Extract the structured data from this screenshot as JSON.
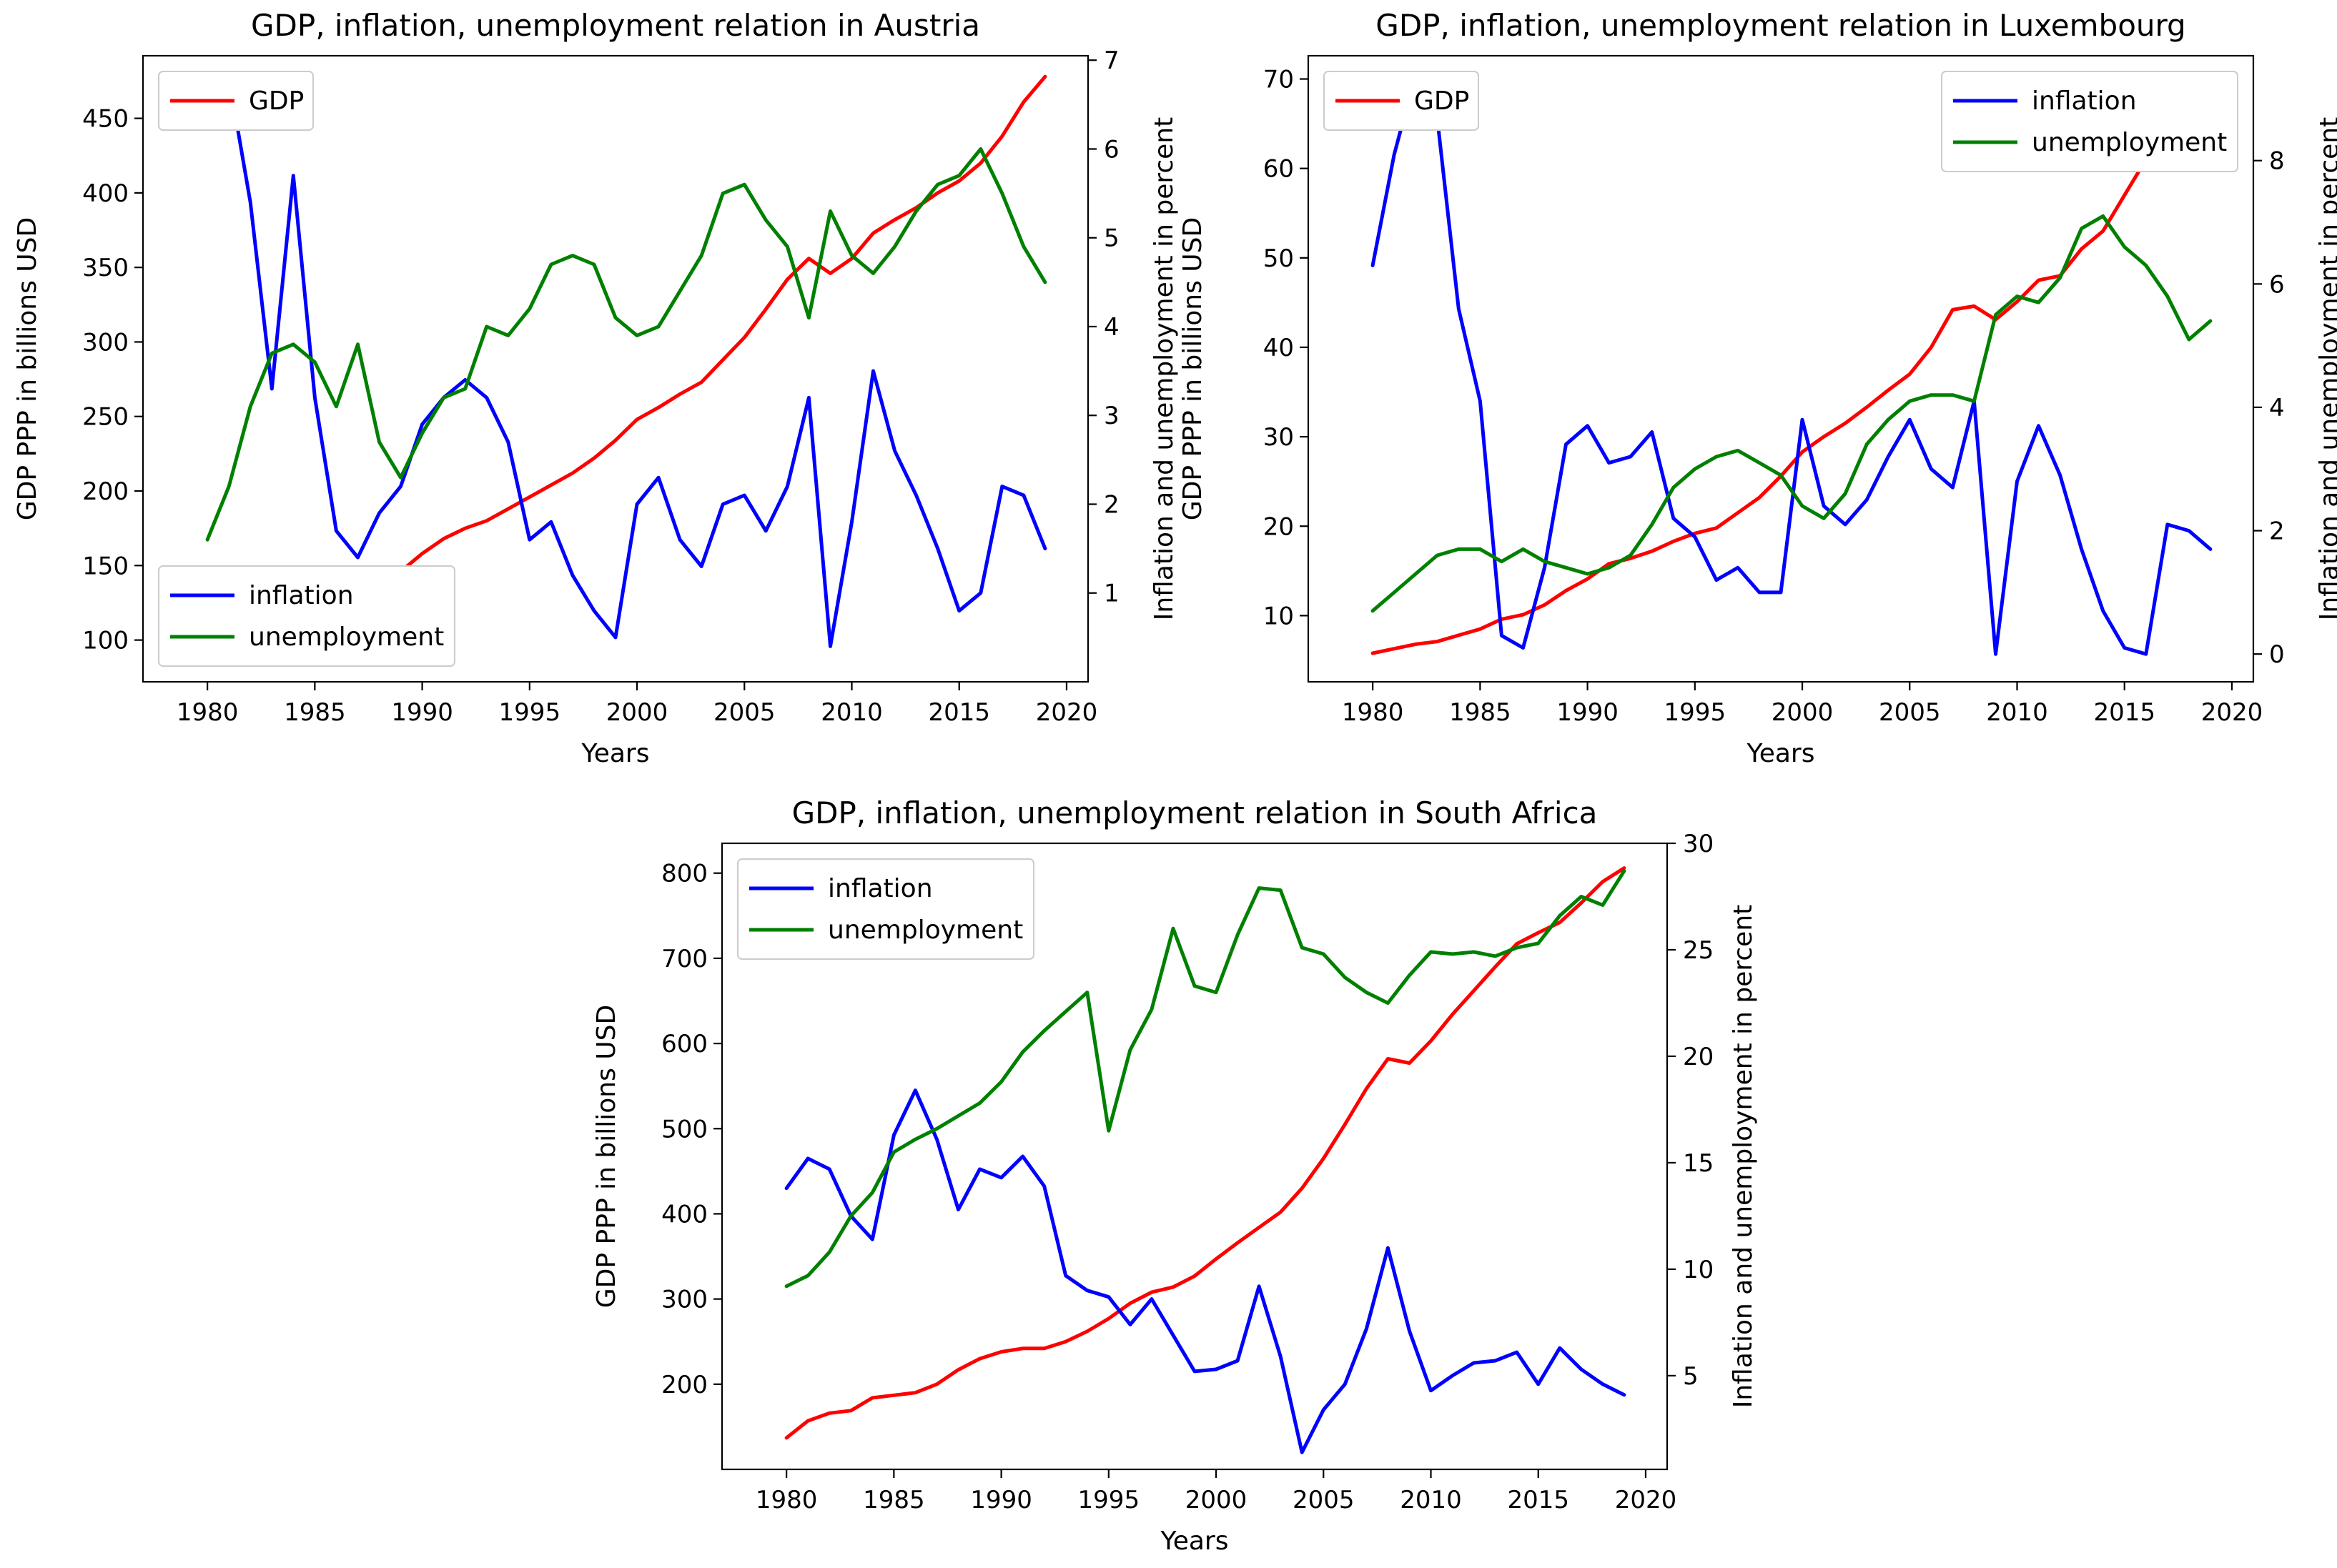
{
  "chart_data": [
    {
      "type": "line",
      "title": "GDP, inflation, unemployment relation in Austria",
      "xlabel": "Years",
      "ylabel": "GDP PPP in billions USD",
      "ylabel_right": "Inflation and unemployment in percent",
      "xlim": [
        1977,
        2021
      ],
      "ylim": [
        72,
        492
      ],
      "ylim_right": [
        0.0,
        7.05
      ],
      "xticks": [
        1980,
        1985,
        1990,
        1995,
        2000,
        2005,
        2010,
        2015,
        2020
      ],
      "yticks": [
        100,
        150,
        200,
        250,
        300,
        350,
        400,
        450
      ],
      "yticks_right": [
        1,
        2,
        3,
        4,
        5,
        6,
        7
      ],
      "x": [
        1980,
        1981,
        1982,
        1983,
        1984,
        1985,
        1986,
        1987,
        1988,
        1989,
        1990,
        1991,
        1992,
        1993,
        1994,
        1995,
        1996,
        1997,
        1998,
        1999,
        2000,
        2001,
        2002,
        2003,
        2004,
        2005,
        2006,
        2007,
        2008,
        2009,
        2010,
        2011,
        2012,
        2013,
        2014,
        2015,
        2016,
        2017,
        2018,
        2019
      ],
      "series": [
        {
          "name": "GDP",
          "axis": "left",
          "color": "#ff0000",
          "values": [
            85,
            92,
            100,
            107,
            112,
            116,
            122,
            127,
            133,
            146,
            158,
            168,
            175,
            180,
            188,
            196,
            204,
            212,
            222,
            234,
            248,
            256,
            265,
            273,
            288,
            303,
            322,
            342,
            356,
            346,
            356,
            373,
            382,
            390,
            400,
            408,
            420,
            438,
            461,
            478
          ]
        },
        {
          "name": "inflation",
          "axis": "right",
          "color": "#0000ff",
          "values": [
            6.4,
            6.8,
            5.4,
            3.3,
            5.7,
            3.2,
            1.7,
            1.4,
            1.9,
            2.2,
            2.9,
            3.2,
            3.4,
            3.2,
            2.7,
            1.6,
            1.8,
            1.2,
            0.8,
            0.5,
            2.0,
            2.3,
            1.6,
            1.3,
            2.0,
            2.1,
            1.7,
            2.2,
            3.2,
            0.4,
            1.8,
            3.5,
            2.6,
            2.1,
            1.5,
            0.8,
            1.0,
            2.2,
            2.1,
            1.5
          ]
        },
        {
          "name": "unemployment",
          "axis": "right",
          "color": "#008000",
          "values": [
            1.6,
            2.2,
            3.1,
            3.7,
            3.8,
            3.6,
            3.1,
            3.8,
            2.7,
            2.3,
            2.8,
            3.2,
            3.3,
            4.0,
            3.9,
            4.2,
            4.7,
            4.8,
            4.7,
            4.1,
            3.9,
            4.0,
            4.4,
            4.8,
            5.5,
            5.6,
            5.2,
            4.9,
            4.1,
            5.3,
            4.8,
            4.6,
            4.9,
            5.3,
            5.6,
            5.7,
            6.0,
            5.5,
            4.9,
            4.5
          ]
        }
      ],
      "legends": [
        {
          "position": "top-left",
          "entries": [
            {
              "label": "GDP",
              "color": "#ff0000"
            }
          ]
        },
        {
          "position": "bottom-left",
          "entries": [
            {
              "label": "inflation",
              "color": "#0000ff"
            },
            {
              "label": "unemployment",
              "color": "#008000"
            }
          ]
        }
      ]
    },
    {
      "type": "line",
      "title": "GDP, inflation, unemployment relation in Luxembourg",
      "xlabel": "Years",
      "ylabel": "GDP PPP in billions USD",
      "ylabel_right": "Inflation and unemployment in percent",
      "xlim": [
        1977,
        2021
      ],
      "ylim": [
        2.6,
        72.6
      ],
      "ylim_right": [
        -0.45,
        9.7
      ],
      "xticks": [
        1980,
        1985,
        1990,
        1995,
        2000,
        2005,
        2010,
        2015,
        2020
      ],
      "yticks": [
        10,
        20,
        30,
        40,
        50,
        60,
        70
      ],
      "yticks_right": [
        0,
        2,
        4,
        6,
        8
      ],
      "x": [
        1980,
        1981,
        1982,
        1983,
        1984,
        1985,
        1986,
        1987,
        1988,
        1989,
        1990,
        1991,
        1992,
        1993,
        1994,
        1995,
        1996,
        1997,
        1998,
        1999,
        2000,
        2001,
        2002,
        2003,
        2004,
        2005,
        2006,
        2007,
        2008,
        2009,
        2010,
        2011,
        2012,
        2013,
        2014,
        2015,
        2016,
        2017,
        2018,
        2019
      ],
      "series": [
        {
          "name": "GDP",
          "axis": "left",
          "color": "#ff0000",
          "values": [
            5.8,
            6.3,
            6.8,
            7.1,
            7.8,
            8.5,
            9.6,
            10.1,
            11.2,
            12.8,
            14.1,
            15.8,
            16.4,
            17.2,
            18.3,
            19.2,
            19.8,
            21.5,
            23.2,
            25.6,
            28.3,
            30.0,
            31.5,
            33.3,
            35.2,
            37.0,
            40.0,
            44.2,
            44.6,
            43.1,
            45.1,
            47.5,
            48.0,
            51.0,
            53.0,
            57.0,
            61.0,
            64.5,
            66.5,
            69.0
          ]
        },
        {
          "name": "inflation",
          "axis": "right",
          "color": "#0000ff",
          "values": [
            6.3,
            8.1,
            9.4,
            8.7,
            5.6,
            4.1,
            0.3,
            0.1,
            1.4,
            3.4,
            3.7,
            3.1,
            3.2,
            3.6,
            2.2,
            1.9,
            1.2,
            1.4,
            1.0,
            1.0,
            3.8,
            2.4,
            2.1,
            2.5,
            3.2,
            3.8,
            3.0,
            2.7,
            4.1,
            0.0,
            2.8,
            3.7,
            2.9,
            1.7,
            0.7,
            0.1,
            0.0,
            2.1,
            2.0,
            1.7
          ]
        },
        {
          "name": "unemployment",
          "axis": "right",
          "color": "#008000",
          "values": [
            0.7,
            1.0,
            1.3,
            1.6,
            1.7,
            1.7,
            1.5,
            1.7,
            1.5,
            1.4,
            1.3,
            1.4,
            1.6,
            2.1,
            2.7,
            3.0,
            3.2,
            3.3,
            3.1,
            2.9,
            2.4,
            2.2,
            2.6,
            3.4,
            3.8,
            4.1,
            4.2,
            4.2,
            4.1,
            5.5,
            5.8,
            5.7,
            6.1,
            6.9,
            7.1,
            6.6,
            6.3,
            5.8,
            5.1,
            5.4
          ]
        }
      ],
      "legends": [
        {
          "position": "top-left",
          "entries": [
            {
              "label": "GDP",
              "color": "#ff0000"
            }
          ]
        },
        {
          "position": "top-right",
          "entries": [
            {
              "label": "inflation",
              "color": "#0000ff"
            },
            {
              "label": "unemployment",
              "color": "#008000"
            }
          ]
        }
      ]
    },
    {
      "type": "line",
      "title": "GDP, inflation, unemployment relation in South Africa",
      "xlabel": "Years",
      "ylabel": "GDP PPP in billions USD",
      "ylabel_right": "Inflation and unemployment in percent",
      "xlim": [
        1977,
        2021
      ],
      "ylim": [
        100,
        835
      ],
      "ylim_right": [
        0.6,
        30.0
      ],
      "xticks": [
        1980,
        1985,
        1990,
        1995,
        2000,
        2005,
        2010,
        2015,
        2020
      ],
      "yticks": [
        200,
        300,
        400,
        500,
        600,
        700,
        800
      ],
      "yticks_right": [
        5,
        10,
        15,
        20,
        25,
        30
      ],
      "x": [
        1980,
        1981,
        1982,
        1983,
        1984,
        1985,
        1986,
        1987,
        1988,
        1989,
        1990,
        1991,
        1992,
        1993,
        1994,
        1995,
        1996,
        1997,
        1998,
        1999,
        2000,
        2001,
        2002,
        2003,
        2004,
        2005,
        2006,
        2007,
        2008,
        2009,
        2010,
        2011,
        2012,
        2013,
        2014,
        2015,
        2016,
        2017,
        2018,
        2019
      ],
      "series": [
        {
          "name": "GDP",
          "axis": "left",
          "color": "#ff0000",
          "values": [
            137,
            157,
            166,
            169,
            184,
            187,
            190,
            200,
            217,
            230,
            238,
            242,
            242,
            250,
            262,
            277,
            295,
            308,
            314,
            327,
            347,
            366,
            384,
            402,
            430,
            465,
            505,
            547,
            582,
            577,
            603,
            634,
            662,
            690,
            717,
            730,
            742,
            765,
            790,
            806
          ]
        },
        {
          "name": "inflation",
          "axis": "right",
          "color": "#0000ff",
          "values": [
            13.8,
            15.2,
            14.7,
            12.5,
            11.4,
            16.3,
            18.4,
            16.1,
            12.8,
            14.7,
            14.3,
            15.3,
            13.9,
            9.7,
            9.0,
            8.7,
            7.4,
            8.6,
            6.9,
            5.2,
            5.3,
            5.7,
            9.2,
            5.9,
            1.4,
            3.4,
            4.6,
            7.2,
            11.0,
            7.1,
            4.3,
            5.0,
            5.6,
            5.7,
            6.1,
            4.6,
            6.3,
            5.3,
            4.6,
            4.1
          ]
        },
        {
          "name": "unemployment",
          "axis": "right",
          "color": "#008000",
          "values": [
            9.2,
            9.7,
            10.8,
            12.5,
            13.6,
            15.5,
            16.1,
            16.6,
            17.2,
            17.8,
            18.8,
            20.2,
            21.2,
            22.1,
            23.0,
            16.5,
            20.3,
            22.2,
            26.0,
            23.3,
            23.0,
            25.7,
            27.9,
            27.8,
            25.1,
            24.8,
            23.7,
            23.0,
            22.5,
            23.8,
            24.9,
            24.8,
            24.9,
            24.7,
            25.1,
            25.3,
            26.6,
            27.5,
            27.1,
            28.7
          ]
        }
      ],
      "legends": [
        {
          "position": "top-left",
          "entries": [
            {
              "label": "inflation",
              "color": "#0000ff"
            },
            {
              "label": "unemployment",
              "color": "#008000"
            }
          ]
        }
      ]
    }
  ]
}
